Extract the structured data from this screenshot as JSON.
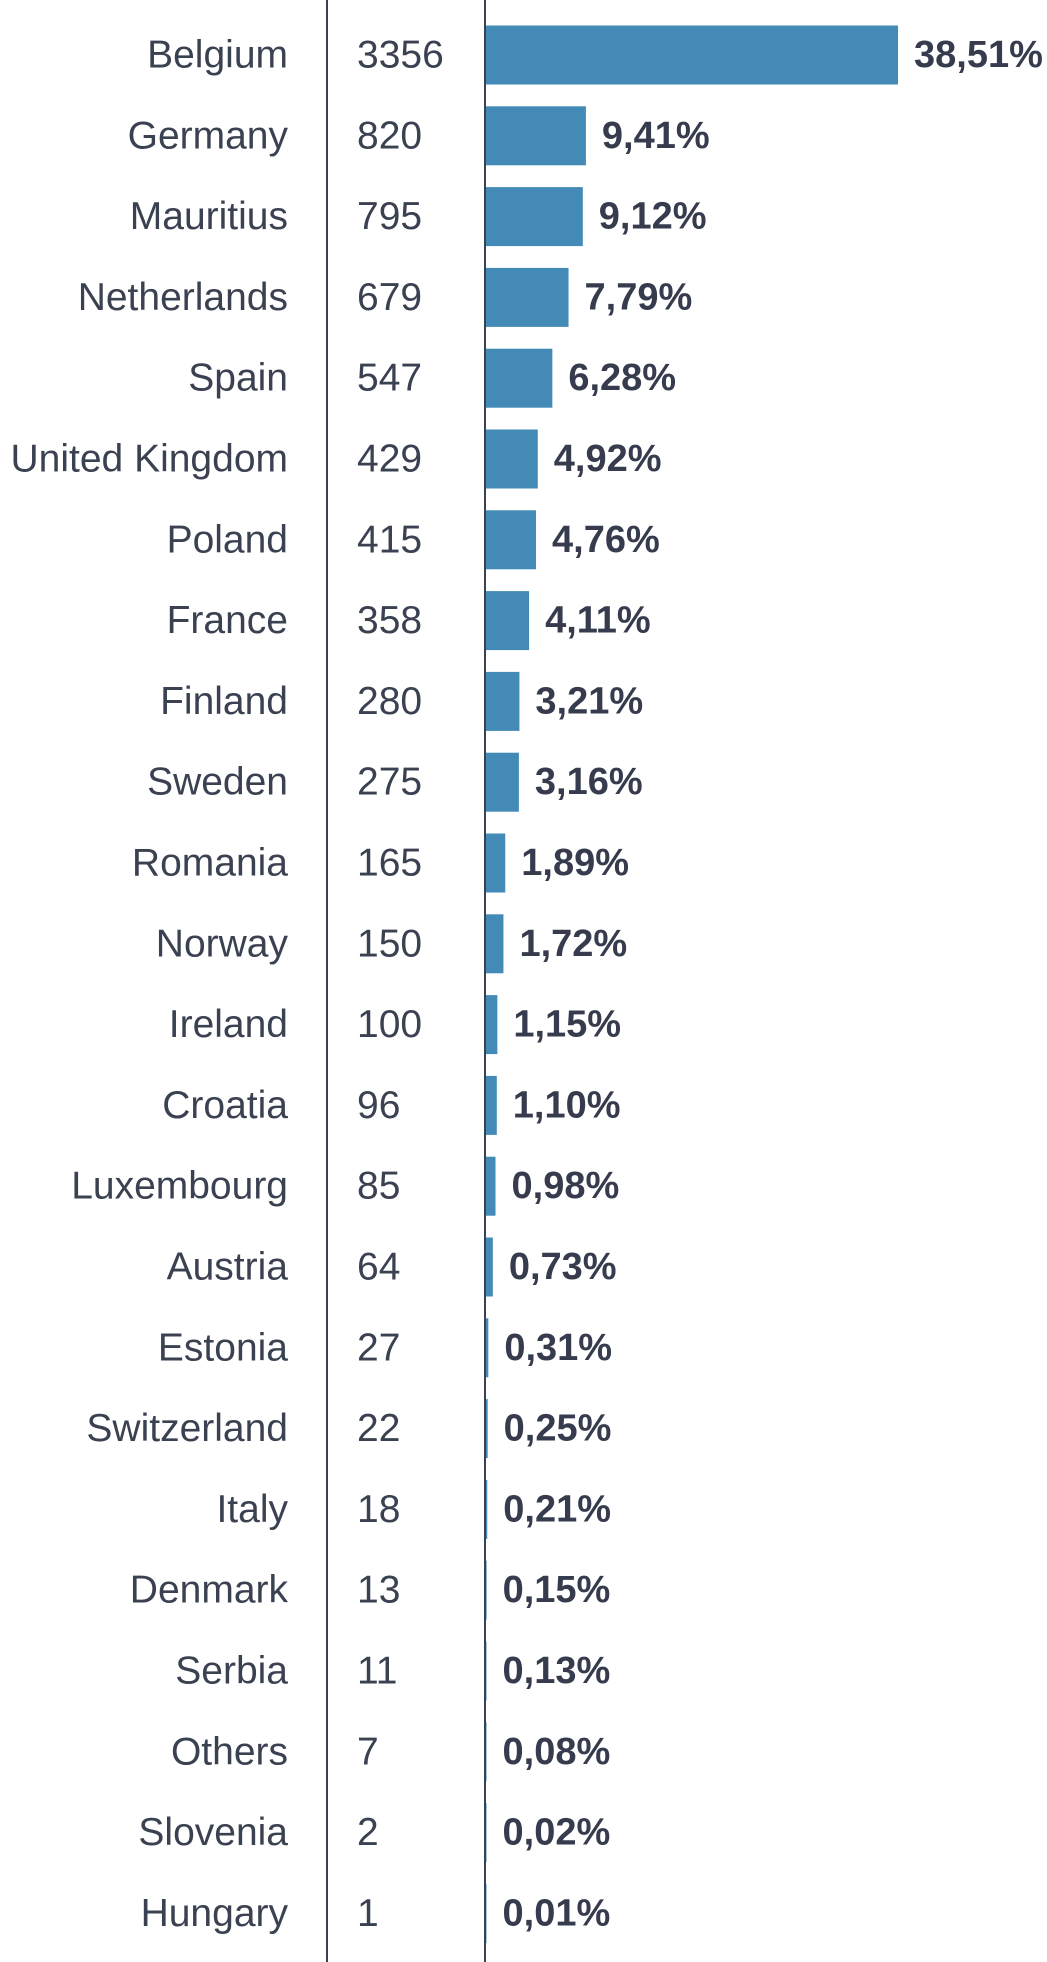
{
  "chart_data": {
    "type": "bar",
    "orientation": "horizontal",
    "categories": [
      "Belgium",
      "Germany",
      "Mauritius",
      "Netherlands",
      "Spain",
      "United Kingdom",
      "Poland",
      "France",
      "Finland",
      "Sweden",
      "Romania",
      "Norway",
      "Ireland",
      "Croatia",
      "Luxembourg",
      "Austria",
      "Estonia",
      "Switzerland",
      "Italy",
      "Denmark",
      "Serbia",
      "Others",
      "Slovenia",
      "Hungary"
    ],
    "count_labels": [
      "3356",
      "820",
      "795",
      "679",
      "547",
      "429",
      "415",
      "358",
      "280",
      "275",
      "165",
      "150",
      "100",
      "96",
      "85",
      "64",
      "27",
      "22",
      "18",
      "13",
      "11",
      "7",
      "2",
      "1"
    ],
    "values": [
      38.51,
      9.41,
      9.12,
      7.79,
      6.28,
      4.92,
      4.76,
      4.11,
      3.21,
      3.16,
      1.89,
      1.72,
      1.15,
      1.1,
      0.98,
      0.73,
      0.31,
      0.25,
      0.21,
      0.15,
      0.13,
      0.08,
      0.02,
      0.01
    ],
    "value_labels": [
      "38,51%",
      "9,41%",
      "9,12%",
      "7,79%",
      "6,28%",
      "4,92%",
      "4,76%",
      "4,11%",
      "3,21%",
      "3,16%",
      "1,89%",
      "1,72%",
      "1,15%",
      "1,10%",
      "0,98%",
      "0,73%",
      "0,31%",
      "0,25%",
      "0,21%",
      "0,15%",
      "0,13%",
      "0,08%",
      "0,02%",
      "0,01%"
    ],
    "xlim": [
      0,
      38.51
    ],
    "grid": false,
    "legend": "none",
    "bar_color": "#438bb6"
  }
}
